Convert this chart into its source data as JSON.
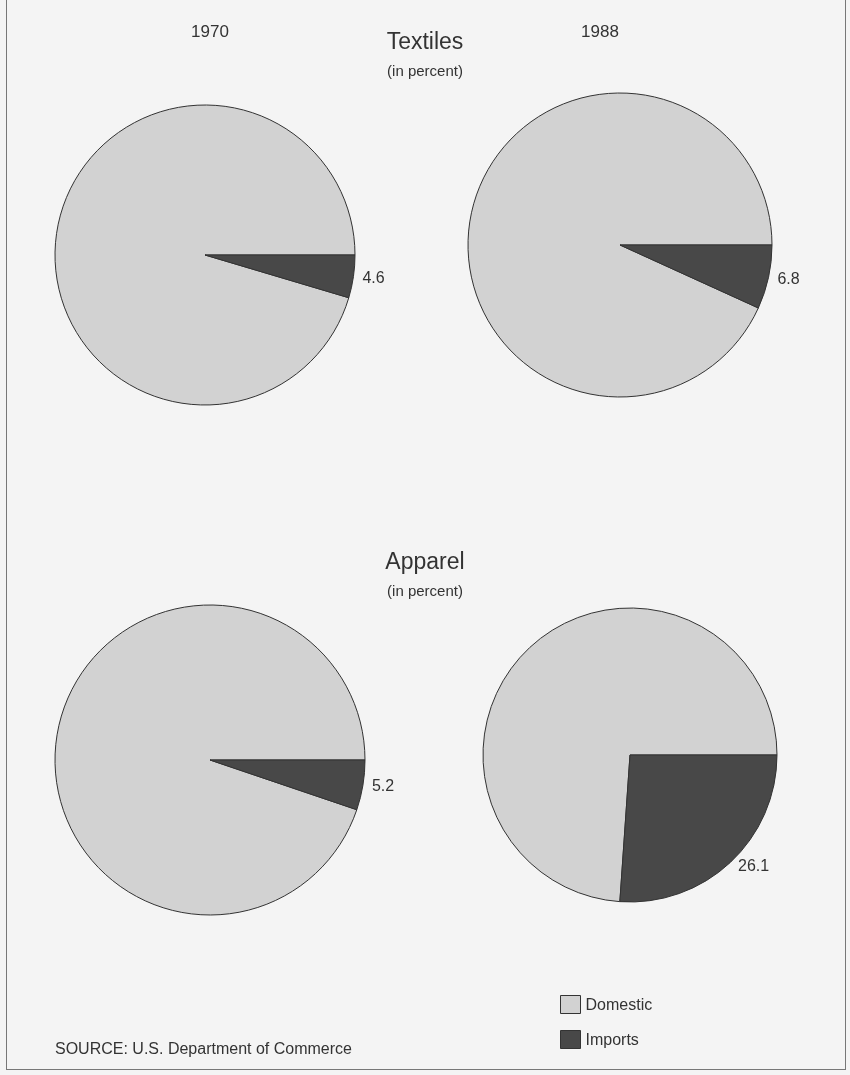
{
  "chart_data": [
    {
      "type": "pie",
      "title": "1970",
      "annotations": [
        "Textiles",
        "(in percent)"
      ],
      "categories": [
        null,
        null
      ],
      "values": [
        95.4,
        4.6
      ],
      "colors": [
        "#d2d2d2",
        "#484848"
      ],
      "value_labels": [
        null,
        "4.6"
      ]
    },
    {
      "type": "pie",
      "title": "1988",
      "categories": [
        null,
        null
      ],
      "values": [
        93.2,
        6.8
      ],
      "colors": [
        "#d2d2d2",
        "#484848"
      ],
      "value_labels": [
        null,
        "6.8"
      ]
    },
    {
      "type": "pie",
      "annotations": [
        "Apparel",
        "(in percent)",
        "SOURCE:  U.S. Department of Commerce"
      ],
      "categories": [
        null,
        null
      ],
      "values": [
        94.8,
        5.2
      ],
      "colors": [
        "#d2d2d2",
        "#484848"
      ],
      "value_labels": [
        null,
        "5.2"
      ]
    },
    {
      "type": "pie",
      "categories": [
        "Domestic",
        "Imports"
      ],
      "values": [
        73.9,
        26.1
      ],
      "colors": [
        "#d2d2d2",
        "#484848"
      ],
      "value_labels": [
        null,
        "26.1"
      ],
      "legend": "bottom"
    }
  ]
}
